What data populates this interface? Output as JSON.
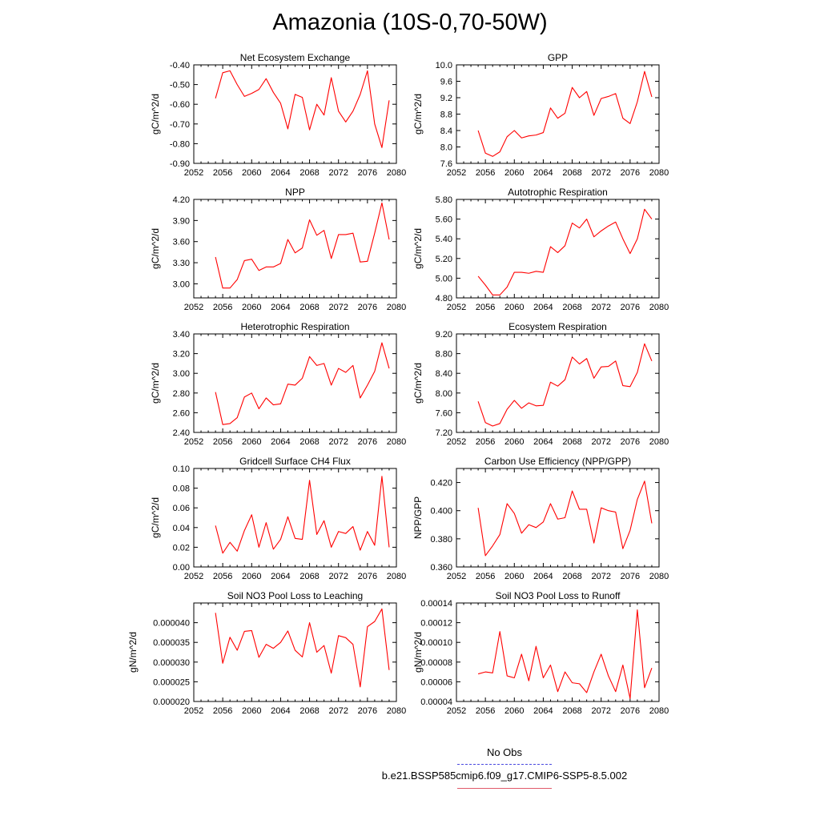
{
  "title": "Amazonia (10S-0,70-50W)",
  "colors": {
    "model": "#ff0000",
    "obs": "#4a4adf",
    "axis": "#000000"
  },
  "legend": {
    "obs_label": "No Obs",
    "model_label": "b.e21.BSSP585cmip6.f09_g17.CMIP6-SSP5-8.5.002"
  },
  "chart_data": [
    {
      "type": "line",
      "title": "Net Ecosystem Exchange",
      "ylabel": "gC/m^2/d",
      "xlim": [
        2052,
        2080
      ],
      "ylim": [
        -0.9,
        -0.4
      ],
      "xticks": [
        2052,
        2056,
        2060,
        2064,
        2068,
        2072,
        2076,
        2080
      ],
      "yticks": [
        -0.9,
        -0.8,
        -0.7,
        -0.6,
        -0.5,
        -0.4
      ],
      "ytick_labels": [
        "-0.90",
        "-0.80",
        "-0.70",
        "-0.60",
        "-0.50",
        "-0.40"
      ],
      "series": [
        {
          "x": [
            2055,
            2056,
            2057,
            2058,
            2059,
            2060,
            2061,
            2062,
            2063,
            2064,
            2065,
            2066,
            2067,
            2068,
            2069,
            2070,
            2071,
            2072,
            2073,
            2074,
            2075,
            2076,
            2077,
            2078,
            2079
          ],
          "values": [
            -0.57,
            -0.44,
            -0.43,
            -0.5,
            -0.56,
            -0.545,
            -0.525,
            -0.47,
            -0.54,
            -0.595,
            -0.725,
            -0.55,
            -0.565,
            -0.73,
            -0.6,
            -0.655,
            -0.465,
            -0.635,
            -0.69,
            -0.635,
            -0.55,
            -0.43,
            -0.7,
            -0.82,
            -0.58
          ]
        }
      ]
    },
    {
      "type": "line",
      "title": "GPP",
      "ylabel": "gC/m^2/d",
      "xlim": [
        2052,
        2080
      ],
      "ylim": [
        7.6,
        10.0
      ],
      "xticks": [
        2052,
        2056,
        2060,
        2064,
        2068,
        2072,
        2076,
        2080
      ],
      "yticks": [
        7.6,
        8.0,
        8.4,
        8.8,
        9.2,
        9.6,
        10.0
      ],
      "ytick_labels": [
        "7.6",
        "8.0",
        "8.4",
        "8.8",
        "9.2",
        "9.6",
        "10.0"
      ],
      "series": [
        {
          "x": [
            2055,
            2056,
            2057,
            2058,
            2059,
            2060,
            2061,
            2062,
            2063,
            2064,
            2065,
            2066,
            2067,
            2068,
            2069,
            2070,
            2071,
            2072,
            2073,
            2074,
            2075,
            2076,
            2077,
            2078,
            2079
          ],
          "values": [
            8.4,
            7.85,
            7.77,
            7.88,
            8.25,
            8.4,
            8.22,
            8.27,
            8.29,
            8.35,
            8.95,
            8.7,
            8.82,
            9.45,
            9.2,
            9.35,
            8.77,
            9.18,
            9.23,
            9.3,
            8.7,
            8.57,
            9.1,
            9.84,
            9.22
          ]
        }
      ]
    },
    {
      "type": "line",
      "title": "NPP",
      "ylabel": "gC/m^2/d",
      "xlim": [
        2052,
        2080
      ],
      "ylim": [
        2.8,
        4.2
      ],
      "xticks": [
        2052,
        2056,
        2060,
        2064,
        2068,
        2072,
        2076,
        2080
      ],
      "yticks": [
        3.0,
        3.3,
        3.6,
        3.9,
        4.2
      ],
      "ytick_labels": [
        "3.00",
        "3.30",
        "3.60",
        "3.90",
        "4.20"
      ],
      "series": [
        {
          "x": [
            2055,
            2056,
            2057,
            2058,
            2059,
            2060,
            2061,
            2062,
            2063,
            2064,
            2065,
            2066,
            2067,
            2068,
            2069,
            2070,
            2071,
            2072,
            2073,
            2074,
            2075,
            2076,
            2077,
            2078,
            2079
          ],
          "values": [
            3.38,
            2.94,
            2.94,
            3.06,
            3.33,
            3.35,
            3.19,
            3.24,
            3.24,
            3.29,
            3.63,
            3.44,
            3.51,
            3.91,
            3.69,
            3.76,
            3.36,
            3.7,
            3.7,
            3.72,
            3.31,
            3.32,
            3.72,
            4.15,
            3.63
          ]
        }
      ]
    },
    {
      "type": "line",
      "title": "Autotrophic Respiration",
      "ylabel": "gC/m^2/d",
      "xlim": [
        2052,
        2080
      ],
      "ylim": [
        4.8,
        5.8
      ],
      "xticks": [
        2052,
        2056,
        2060,
        2064,
        2068,
        2072,
        2076,
        2080
      ],
      "yticks": [
        4.8,
        5.0,
        5.2,
        5.4,
        5.6,
        5.8
      ],
      "ytick_labels": [
        "4.80",
        "5.00",
        "5.20",
        "5.40",
        "5.60",
        "5.80"
      ],
      "series": [
        {
          "x": [
            2055,
            2056,
            2057,
            2058,
            2059,
            2060,
            2061,
            2062,
            2063,
            2064,
            2065,
            2066,
            2067,
            2068,
            2069,
            2070,
            2071,
            2072,
            2073,
            2074,
            2075,
            2076,
            2077,
            2078,
            2079
          ],
          "values": [
            5.02,
            4.93,
            4.83,
            4.83,
            4.91,
            5.06,
            5.06,
            5.05,
            5.07,
            5.06,
            5.32,
            5.26,
            5.33,
            5.56,
            5.51,
            5.6,
            5.42,
            5.48,
            5.53,
            5.57,
            5.4,
            5.25,
            5.4,
            5.7,
            5.6
          ]
        }
      ]
    },
    {
      "type": "line",
      "title": "Heterotrophic Respiration",
      "ylabel": "gC/m^2/d",
      "xlim": [
        2052,
        2080
      ],
      "ylim": [
        2.4,
        3.4
      ],
      "xticks": [
        2052,
        2056,
        2060,
        2064,
        2068,
        2072,
        2076,
        2080
      ],
      "yticks": [
        2.4,
        2.6,
        2.8,
        3.0,
        3.2,
        3.4
      ],
      "ytick_labels": [
        "2.40",
        "2.60",
        "2.80",
        "3.00",
        "3.20",
        "3.40"
      ],
      "series": [
        {
          "x": [
            2055,
            2056,
            2057,
            2058,
            2059,
            2060,
            2061,
            2062,
            2063,
            2064,
            2065,
            2066,
            2067,
            2068,
            2069,
            2070,
            2071,
            2072,
            2073,
            2074,
            2075,
            2076,
            2077,
            2078,
            2079
          ],
          "values": [
            2.81,
            2.48,
            2.49,
            2.55,
            2.76,
            2.8,
            2.64,
            2.75,
            2.68,
            2.69,
            2.89,
            2.88,
            2.95,
            3.17,
            3.08,
            3.1,
            2.88,
            3.05,
            3.01,
            3.08,
            2.75,
            2.88,
            3.02,
            3.31,
            3.05
          ]
        }
      ]
    },
    {
      "type": "line",
      "title": "Ecosystem Respiration",
      "ylabel": "gC/m^2/d",
      "xlim": [
        2052,
        2080
      ],
      "ylim": [
        7.2,
        9.2
      ],
      "xticks": [
        2052,
        2056,
        2060,
        2064,
        2068,
        2072,
        2076,
        2080
      ],
      "yticks": [
        7.2,
        7.6,
        8.0,
        8.4,
        8.8,
        9.2
      ],
      "ytick_labels": [
        "7.20",
        "7.60",
        "8.00",
        "8.40",
        "8.80",
        "9.20"
      ],
      "series": [
        {
          "x": [
            2055,
            2056,
            2057,
            2058,
            2059,
            2060,
            2061,
            2062,
            2063,
            2064,
            2065,
            2066,
            2067,
            2068,
            2069,
            2070,
            2071,
            2072,
            2073,
            2074,
            2075,
            2076,
            2077,
            2078,
            2079
          ],
          "values": [
            7.83,
            7.4,
            7.33,
            7.38,
            7.67,
            7.85,
            7.69,
            7.8,
            7.74,
            7.75,
            8.22,
            8.14,
            8.27,
            8.73,
            8.59,
            8.7,
            8.3,
            8.53,
            8.54,
            8.65,
            8.15,
            8.13,
            8.42,
            9.0,
            8.65
          ]
        }
      ]
    },
    {
      "type": "line",
      "title": "Gridcell Surface CH4 Flux",
      "ylabel": "gC/m^2/d",
      "xlim": [
        2052,
        2080
      ],
      "ylim": [
        0.0,
        0.1
      ],
      "xticks": [
        2052,
        2056,
        2060,
        2064,
        2068,
        2072,
        2076,
        2080
      ],
      "yticks": [
        0.0,
        0.02,
        0.04,
        0.06,
        0.08,
        0.1
      ],
      "ytick_labels": [
        "0.00",
        "0.02",
        "0.04",
        "0.06",
        "0.08",
        "0.10"
      ],
      "series": [
        {
          "x": [
            2055,
            2056,
            2057,
            2058,
            2059,
            2060,
            2061,
            2062,
            2063,
            2064,
            2065,
            2066,
            2067,
            2068,
            2069,
            2070,
            2071,
            2072,
            2073,
            2074,
            2075,
            2076,
            2077,
            2078,
            2079
          ],
          "values": [
            0.042,
            0.014,
            0.025,
            0.016,
            0.037,
            0.053,
            0.02,
            0.045,
            0.018,
            0.028,
            0.051,
            0.029,
            0.028,
            0.088,
            0.033,
            0.047,
            0.02,
            0.036,
            0.034,
            0.041,
            0.017,
            0.036,
            0.022,
            0.092,
            0.02
          ]
        }
      ]
    },
    {
      "type": "line",
      "title": "Carbon Use Efficiency (NPP/GPP)",
      "ylabel": "NPP/GPP",
      "xlim": [
        2052,
        2080
      ],
      "ylim": [
        0.36,
        0.43
      ],
      "xticks": [
        2052,
        2056,
        2060,
        2064,
        2068,
        2072,
        2076,
        2080
      ],
      "yticks": [
        0.36,
        0.38,
        0.4,
        0.42
      ],
      "ytick_labels": [
        "0.360",
        "0.380",
        "0.400",
        "0.420"
      ],
      "series": [
        {
          "x": [
            2055,
            2056,
            2057,
            2058,
            2059,
            2060,
            2061,
            2062,
            2063,
            2064,
            2065,
            2066,
            2067,
            2068,
            2069,
            2070,
            2071,
            2072,
            2073,
            2074,
            2075,
            2076,
            2077,
            2078,
            2079
          ],
          "values": [
            0.402,
            0.368,
            0.375,
            0.383,
            0.405,
            0.398,
            0.384,
            0.39,
            0.388,
            0.392,
            0.405,
            0.394,
            0.395,
            0.414,
            0.401,
            0.401,
            0.377,
            0.402,
            0.4,
            0.399,
            0.373,
            0.386,
            0.408,
            0.421,
            0.391
          ]
        }
      ]
    },
    {
      "type": "line",
      "title": "Soil NO3 Pool Loss to Leaching",
      "ylabel": "gN/m^2/d",
      "xlim": [
        2052,
        2080
      ],
      "ylim": [
        2e-05,
        4.5e-05
      ],
      "xticks": [
        2052,
        2056,
        2060,
        2064,
        2068,
        2072,
        2076,
        2080
      ],
      "yticks": [
        2e-05,
        2.5e-05,
        3e-05,
        3.5e-05,
        4e-05
      ],
      "ytick_labels": [
        "0.000020",
        "0.000025",
        "0.000030",
        "0.000035",
        "0.000040"
      ],
      "series": [
        {
          "x": [
            2055,
            2056,
            2057,
            2058,
            2059,
            2060,
            2061,
            2062,
            2063,
            2064,
            2065,
            2066,
            2067,
            2068,
            2069,
            2070,
            2071,
            2072,
            2073,
            2074,
            2075,
            2076,
            2077,
            2078,
            2079
          ],
          "values": [
            4.25e-05,
            2.97e-05,
            3.63e-05,
            3.3e-05,
            3.78e-05,
            3.8e-05,
            3.12e-05,
            3.45e-05,
            3.35e-05,
            3.5e-05,
            3.79e-05,
            3.3e-05,
            3.13e-05,
            4e-05,
            3.25e-05,
            3.42e-05,
            2.72e-05,
            3.67e-05,
            3.62e-05,
            3.45e-05,
            2.37e-05,
            3.9e-05,
            4.03e-05,
            4.35e-05,
            2.8e-05
          ]
        }
      ]
    },
    {
      "type": "line",
      "title": "Soil NO3 Pool Loss to Runoff",
      "ylabel": "gN/m^2/d",
      "xlim": [
        2052,
        2080
      ],
      "ylim": [
        4e-05,
        0.00014
      ],
      "xticks": [
        2052,
        2056,
        2060,
        2064,
        2068,
        2072,
        2076,
        2080
      ],
      "yticks": [
        4e-05,
        6e-05,
        8e-05,
        0.0001,
        0.00012,
        0.00014
      ],
      "ytick_labels": [
        "0.00004",
        "0.00006",
        "0.00008",
        "0.00010",
        "0.00012",
        "0.00014"
      ],
      "series": [
        {
          "x": [
            2055,
            2056,
            2057,
            2058,
            2059,
            2060,
            2061,
            2062,
            2063,
            2064,
            2065,
            2066,
            2067,
            2068,
            2069,
            2070,
            2071,
            2072,
            2073,
            2074,
            2075,
            2076,
            2077,
            2078,
            2079
          ],
          "values": [
            6.8e-05,
            7e-05,
            6.9e-05,
            0.000111,
            6.6e-05,
            6.4e-05,
            8.8e-05,
            6.1e-05,
            9.6e-05,
            6.4e-05,
            7.7e-05,
            5e-05,
            7e-05,
            5.9e-05,
            5.8e-05,
            4.9e-05,
            7e-05,
            8.8e-05,
            6.6e-05,
            5e-05,
            7.7e-05,
            4.3e-05,
            0.000133,
            5.4e-05,
            7.4e-05
          ]
        }
      ]
    }
  ]
}
